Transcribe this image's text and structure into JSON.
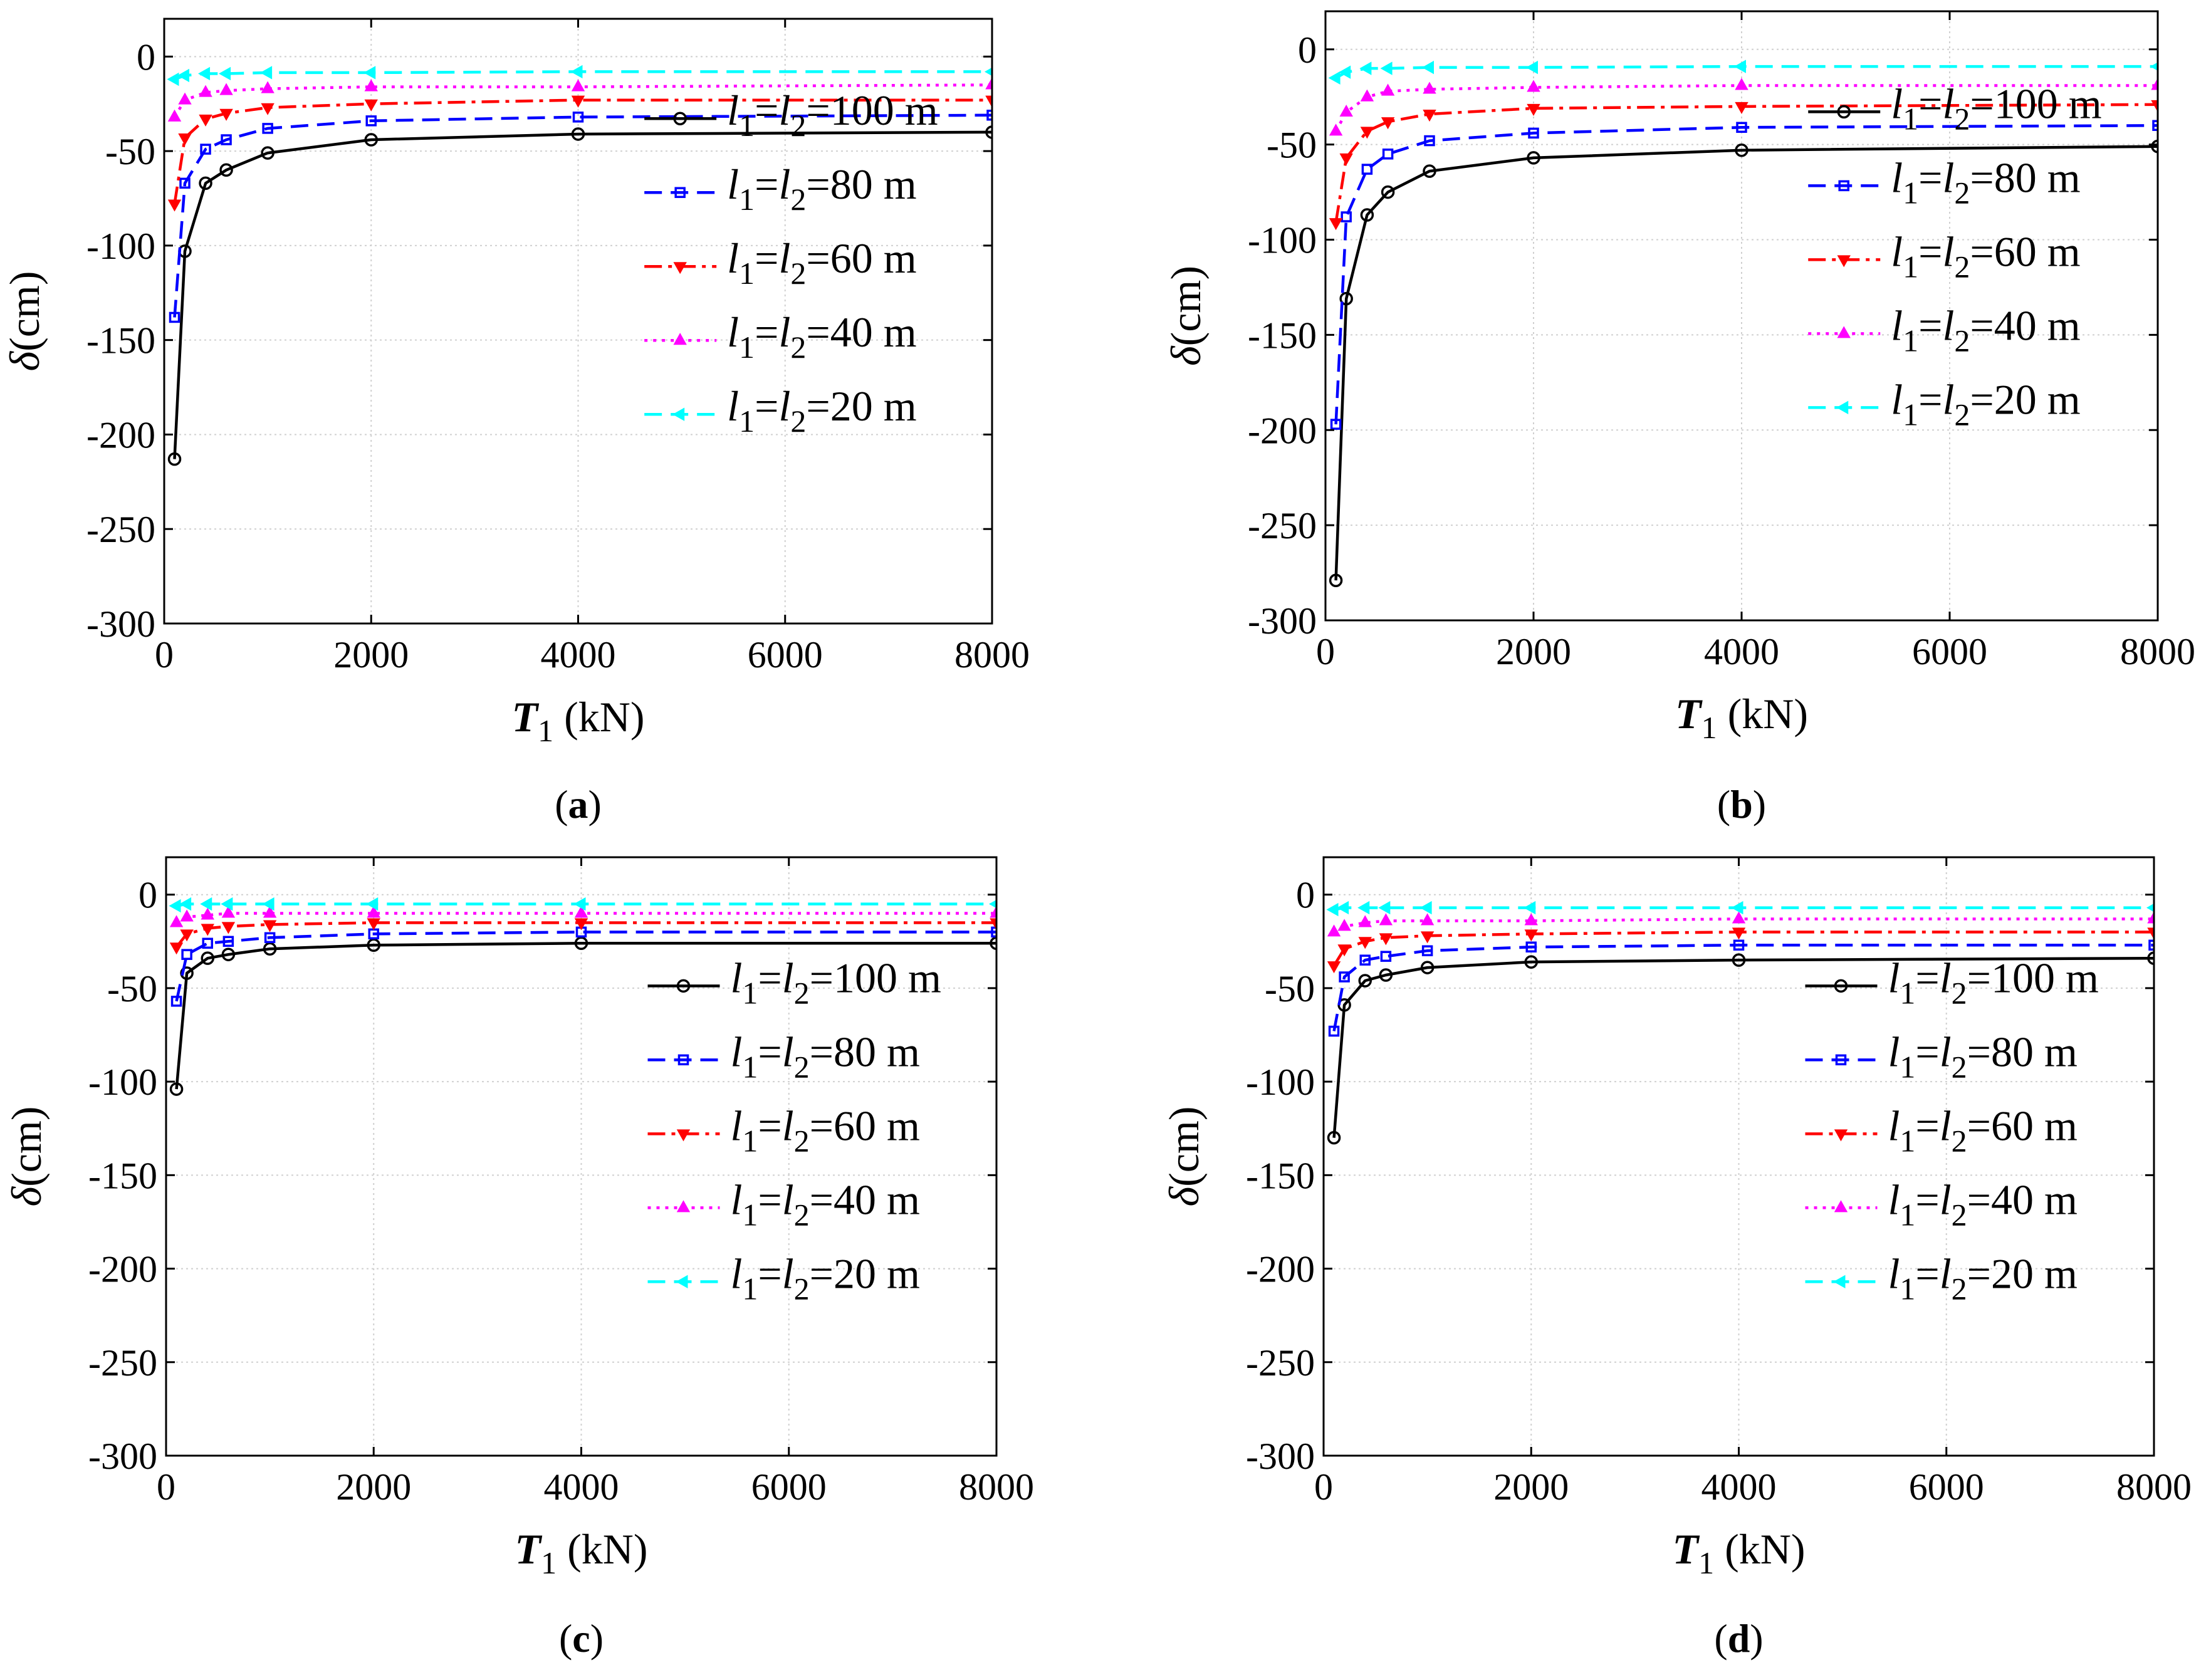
{
  "chart_data": [
    {
      "type": "line",
      "caption_letter": "a",
      "caption_open": "(",
      "caption_close": ")",
      "xlabel_var": "T",
      "xlabel_sub": "1",
      "xlabel_unit": "(kN)",
      "ylabel_var": "δ",
      "ylabel_unit": "(cm)",
      "xlim": [
        0,
        8000
      ],
      "ylim": [
        -300,
        20
      ],
      "xticks": [
        "0",
        "2000",
        "4000",
        "6000",
        "8000"
      ],
      "yticks": [
        "0",
        "-50",
        "-100",
        "-150",
        "-200",
        "-250",
        "-300"
      ],
      "grid": true,
      "legend_position": "right",
      "x": [
        100,
        200,
        400,
        600,
        1000,
        2000,
        4000,
        8000
      ],
      "series": [
        {
          "name": "l1=l2=100 m",
          "v1": "l",
          "s1": "1",
          "eq1": "=",
          "v2": "l",
          "s2": "2",
          "rest": "=100 m",
          "color": "#000000",
          "dash": "",
          "marker": "circle",
          "values": [
            -213,
            -103,
            -67,
            -60,
            -51,
            -44,
            -41,
            -40
          ]
        },
        {
          "name": "l1=l2=80 m",
          "v1": "l",
          "s1": "1",
          "eq1": "=",
          "v2": "l",
          "s2": "2",
          "rest": "=80 m",
          "color": "#0000ff",
          "dash": "28,14",
          "marker": "square",
          "values": [
            -138,
            -67,
            -49,
            -44,
            -38,
            -34,
            -32,
            -31
          ]
        },
        {
          "name": "l1=l2=60 m",
          "v1": "l",
          "s1": "1",
          "eq1": "=",
          "v2": "l",
          "s2": "2",
          "rest": "=60 m",
          "color": "#ff0000",
          "dash": "28,10,6,10",
          "marker": "triangle-down",
          "values": [
            -78,
            -43,
            -33,
            -30,
            -27,
            -25,
            -23,
            -23
          ]
        },
        {
          "name": "l1=l2=40 m",
          "v1": "l",
          "s1": "1",
          "eq1": "=",
          "v2": "l",
          "s2": "2",
          "rest": "=40 m",
          "color": "#ff00ff",
          "dash": "5,9",
          "marker": "triangle-up",
          "values": [
            -32,
            -23,
            -19,
            -18,
            -17,
            -16,
            -16,
            -15
          ]
        },
        {
          "name": "l1=l2=20 m",
          "v1": "l",
          "s1": "1",
          "eq1": "=",
          "v2": "l",
          "s2": "2",
          "rest": "=20 m",
          "color": "#00ffff",
          "dash": "28,14",
          "marker": "triangle-left",
          "values": [
            -12,
            -10,
            -9,
            -9,
            -8.5,
            -8.5,
            -8,
            -8
          ]
        }
      ]
    },
    {
      "type": "line",
      "caption_letter": "b",
      "caption_open": "(",
      "caption_close": ")",
      "xlabel_var": "T",
      "xlabel_sub": "1",
      "xlabel_unit": "(kN)",
      "ylabel_var": "δ",
      "ylabel_unit": "(cm)",
      "xlim": [
        0,
        8000
      ],
      "ylim": [
        -300,
        20
      ],
      "xticks": [
        "0",
        "2000",
        "4000",
        "6000",
        "8000"
      ],
      "yticks": [
        "0",
        "-50",
        "-100",
        "-150",
        "-200",
        "-250",
        "-300"
      ],
      "grid": true,
      "legend_position": "right",
      "x": [
        100,
        200,
        400,
        600,
        1000,
        2000,
        4000,
        8000
      ],
      "series": [
        {
          "name": "l1=l2=100 m",
          "v1": "l",
          "s1": "1",
          "eq1": "=",
          "v2": "l",
          "s2": "2",
          "rest": "=100 m",
          "color": "#000000",
          "dash": "",
          "marker": "circle",
          "values": [
            -279,
            -131,
            -87,
            -75,
            -64,
            -57,
            -53,
            -51
          ]
        },
        {
          "name": "l1=l2=80 m",
          "v1": "l",
          "s1": "1",
          "eq1": "=",
          "v2": "l",
          "s2": "2",
          "rest": "=80 m",
          "color": "#0000ff",
          "dash": "28,14",
          "marker": "square",
          "values": [
            -197,
            -88,
            -63,
            -55,
            -48,
            -44,
            -41,
            -40
          ]
        },
        {
          "name": "l1=l2=60 m",
          "v1": "l",
          "s1": "1",
          "eq1": "=",
          "v2": "l",
          "s2": "2",
          "rest": "=60 m",
          "color": "#ff0000",
          "dash": "28,10,6,10",
          "marker": "triangle-down",
          "values": [
            -91,
            -57,
            -43,
            -38,
            -34,
            -31,
            -30,
            -29
          ]
        },
        {
          "name": "l1=l2=40 m",
          "v1": "l",
          "s1": "1",
          "eq1": "=",
          "v2": "l",
          "s2": "2",
          "rest": "=40 m",
          "color": "#ff00ff",
          "dash": "5,9",
          "marker": "triangle-up",
          "values": [
            -43,
            -33,
            -25,
            -22,
            -21,
            -20,
            -19,
            -19
          ]
        },
        {
          "name": "l1=l2=20 m",
          "v1": "l",
          "s1": "1",
          "eq1": "=",
          "v2": "l",
          "s2": "2",
          "rest": "=20 m",
          "color": "#00ffff",
          "dash": "28,14",
          "marker": "triangle-left",
          "values": [
            -15,
            -12,
            -10,
            -10,
            -9.5,
            -9.5,
            -9,
            -9
          ]
        }
      ]
    },
    {
      "type": "line",
      "caption_letter": "c",
      "caption_open": "(",
      "caption_close": ")",
      "xlabel_var": "T",
      "xlabel_sub": "1",
      "xlabel_unit": "(kN)",
      "ylabel_var": "δ",
      "ylabel_unit": "(cm)",
      "xlim": [
        0,
        8000
      ],
      "ylim": [
        -300,
        20
      ],
      "xticks": [
        "0",
        "2000",
        "4000",
        "6000",
        "8000"
      ],
      "yticks": [
        "0",
        "-50",
        "-100",
        "-150",
        "-200",
        "-250",
        "-300"
      ],
      "grid": true,
      "legend_position": "right",
      "x": [
        100,
        200,
        400,
        600,
        1000,
        2000,
        4000,
        8000
      ],
      "series": [
        {
          "name": "l1=l2=100 m",
          "v1": "l",
          "s1": "1",
          "eq1": "=",
          "v2": "l",
          "s2": "2",
          "rest": "=100 m",
          "color": "#000000",
          "dash": "",
          "marker": "circle",
          "values": [
            -104,
            -42,
            -34,
            -32,
            -29,
            -27,
            -26,
            -26
          ]
        },
        {
          "name": "l1=l2=80 m",
          "v1": "l",
          "s1": "1",
          "eq1": "=",
          "v2": "l",
          "s2": "2",
          "rest": "=80 m",
          "color": "#0000ff",
          "dash": "28,14",
          "marker": "square",
          "values": [
            -57,
            -32,
            -26,
            -25,
            -23,
            -21,
            -20,
            -20
          ]
        },
        {
          "name": "l1=l2=60 m",
          "v1": "l",
          "s1": "1",
          "eq1": "=",
          "v2": "l",
          "s2": "2",
          "rest": "=60 m",
          "color": "#ff0000",
          "dash": "28,10,6,10",
          "marker": "triangle-down",
          "values": [
            -28,
            -21,
            -18,
            -17,
            -16,
            -15,
            -15,
            -15
          ]
        },
        {
          "name": "l1=l2=40 m",
          "v1": "l",
          "s1": "1",
          "eq1": "=",
          "v2": "l",
          "s2": "2",
          "rest": "=40 m",
          "color": "#ff00ff",
          "dash": "5,9",
          "marker": "triangle-up",
          "values": [
            -15,
            -12,
            -11,
            -10,
            -10,
            -10,
            -10,
            -10
          ]
        },
        {
          "name": "l1=l2=20 m",
          "v1": "l",
          "s1": "1",
          "eq1": "=",
          "v2": "l",
          "s2": "2",
          "rest": "=20 m",
          "color": "#00ffff",
          "dash": "28,14",
          "marker": "triangle-left",
          "values": [
            -6,
            -5,
            -5,
            -5,
            -5,
            -5,
            -5,
            -5
          ]
        }
      ]
    },
    {
      "type": "line",
      "caption_letter": "d",
      "caption_open": "(",
      "caption_close": ")",
      "xlabel_var": "T",
      "xlabel_sub": "1",
      "xlabel_unit": "(kN)",
      "ylabel_var": "δ",
      "ylabel_unit": "(cm)",
      "xlim": [
        0,
        8000
      ],
      "ylim": [
        -300,
        20
      ],
      "xticks": [
        "0",
        "2000",
        "4000",
        "6000",
        "8000"
      ],
      "yticks": [
        "0",
        "-50",
        "-100",
        "-150",
        "-200",
        "-250",
        "-300"
      ],
      "grid": true,
      "legend_position": "right",
      "x": [
        100,
        200,
        400,
        600,
        1000,
        2000,
        4000,
        8000
      ],
      "series": [
        {
          "name": "l1=l2=100 m",
          "v1": "l",
          "s1": "1",
          "eq1": "=",
          "v2": "l",
          "s2": "2",
          "rest": "=100 m",
          "color": "#000000",
          "dash": "",
          "marker": "circle",
          "values": [
            -130,
            -59,
            -46,
            -43,
            -39,
            -36,
            -35,
            -34
          ]
        },
        {
          "name": "l1=l2=80 m",
          "v1": "l",
          "s1": "1",
          "eq1": "=",
          "v2": "l",
          "s2": "2",
          "rest": "=80 m",
          "color": "#0000ff",
          "dash": "28,14",
          "marker": "square",
          "values": [
            -73,
            -44,
            -35,
            -33,
            -30,
            -28,
            -27,
            -27
          ]
        },
        {
          "name": "l1=l2=60 m",
          "v1": "l",
          "s1": "1",
          "eq1": "=",
          "v2": "l",
          "s2": "2",
          "rest": "=60 m",
          "color": "#ff0000",
          "dash": "28,10,6,10",
          "marker": "triangle-down",
          "values": [
            -38,
            -29,
            -25,
            -23,
            -22,
            -21,
            -20,
            -20
          ]
        },
        {
          "name": "l1=l2=40 m",
          "v1": "l",
          "s1": "1",
          "eq1": "=",
          "v2": "l",
          "s2": "2",
          "rest": "=40 m",
          "color": "#ff00ff",
          "dash": "5,9",
          "marker": "triangle-up",
          "values": [
            -20,
            -17,
            -15,
            -14,
            -14,
            -14,
            -13,
            -13
          ]
        },
        {
          "name": "l1=l2=20 m",
          "v1": "l",
          "s1": "1",
          "eq1": "=",
          "v2": "l",
          "s2": "2",
          "rest": "=20 m",
          "color": "#00ffff",
          "dash": "28,14",
          "marker": "triangle-left",
          "values": [
            -8,
            -7,
            -7,
            -7,
            -7,
            -7,
            -7,
            -7
          ]
        }
      ]
    }
  ]
}
